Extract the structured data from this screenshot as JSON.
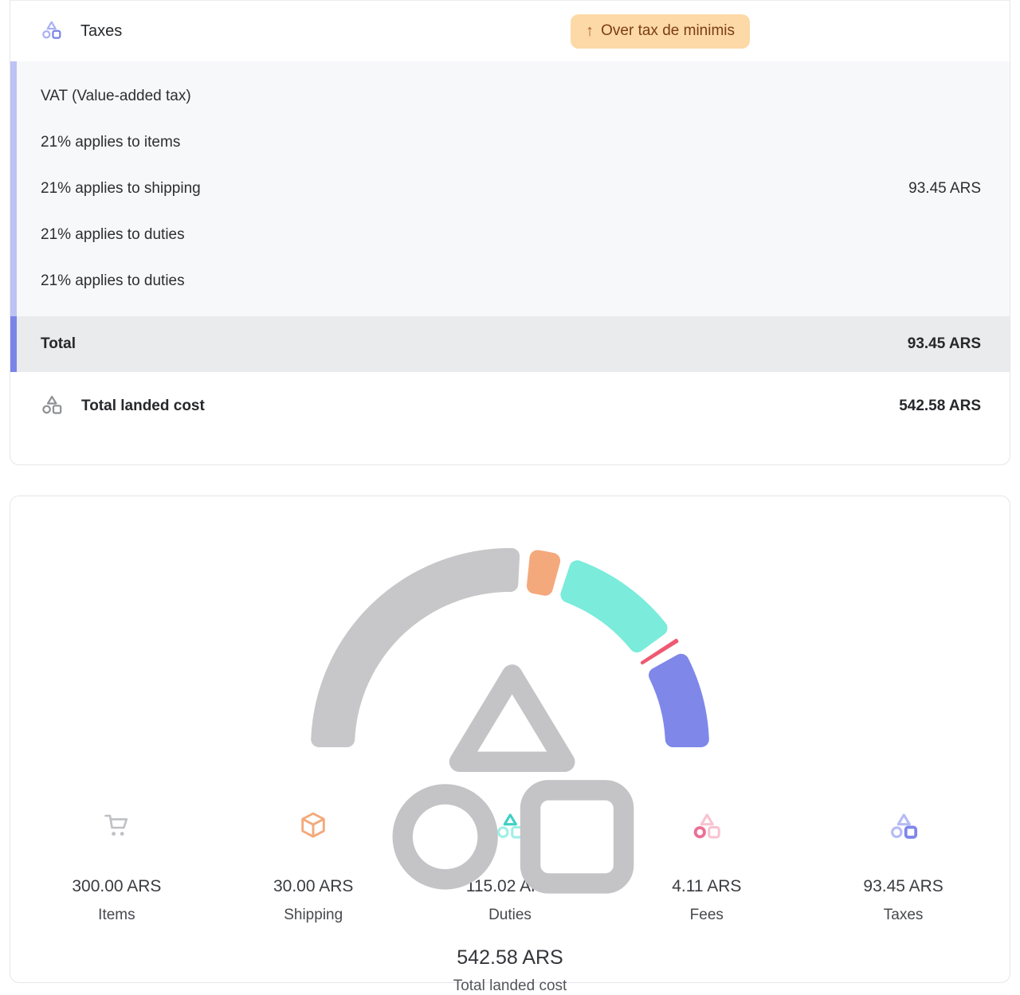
{
  "taxes_card": {
    "title": "Taxes",
    "badge": {
      "arrow": "↑",
      "label": "Over tax de minimis"
    },
    "breakdown_rows": [
      {
        "label": "VAT (Value-added tax)",
        "value": ""
      },
      {
        "label": "21% applies to items",
        "value": ""
      },
      {
        "label": "21% applies to shipping",
        "value": "93.45 ARS"
      },
      {
        "label": "21% applies to duties",
        "value": ""
      },
      {
        "label": "21% applies to duties",
        "value": ""
      }
    ],
    "total": {
      "label": "Total",
      "value": "93.45 ARS"
    },
    "landed": {
      "label": "Total landed cost",
      "value": "542.58 ARS"
    }
  },
  "chart_card": {
    "center": {
      "value": "542.58 ARS",
      "label": "Total landed cost"
    },
    "stats": [
      {
        "value": "300.00 ARS",
        "label": "Items",
        "icon": "cart-icon"
      },
      {
        "value": "30.00 ARS",
        "label": "Shipping",
        "icon": "package-icon"
      },
      {
        "value": "115.02 ARS",
        "label": "Duties",
        "icon": "shapes-icon-teal"
      },
      {
        "value": "4.11 ARS",
        "label": "Fees",
        "icon": "shapes-icon-pink"
      },
      {
        "value": "93.45 ARS",
        "label": "Taxes",
        "icon": "shapes-icon-purple"
      }
    ]
  },
  "chart_data": {
    "type": "gauge-donut",
    "title": "Total landed cost",
    "center_value": "542.58 ARS",
    "currency": "ARS",
    "total": 542.58,
    "segments": [
      {
        "name": "Items",
        "value": 300.0,
        "color": "#c7c7c9"
      },
      {
        "name": "Shipping",
        "value": 30.0,
        "color": "#f4a97c"
      },
      {
        "name": "Duties",
        "value": 115.02,
        "color": "#7bebdb"
      },
      {
        "name": "Fees",
        "value": 4.11,
        "color": "#ee5a71"
      },
      {
        "name": "Taxes",
        "value": 93.45,
        "color": "#7f87e9"
      }
    ],
    "start_angle_deg": 180,
    "end_angle_deg": 0,
    "gap_deg": 3,
    "legend_position": "none",
    "grid": false
  },
  "palette": {
    "badge_bg": "#fcd9a6",
    "badge_text": "#7c3d12",
    "breakdown_bg": "#f7f8fa",
    "breakdown_strip": "#bdc4f3",
    "total_bg": "#eaebed",
    "total_strip": "#7a85e8",
    "card_border": "#e5e6ea",
    "gray": "#c7c7c9",
    "orange": "#f4a97c",
    "teal_dark": "#3fd0c3",
    "teal_light": "#9fefe5",
    "pink_dark": "#ec6f96",
    "pink_light": "#f8c3d2",
    "purple_dark": "#7f87e9",
    "purple_light": "#b6bbf4",
    "red_fees": "#ee5a71"
  }
}
